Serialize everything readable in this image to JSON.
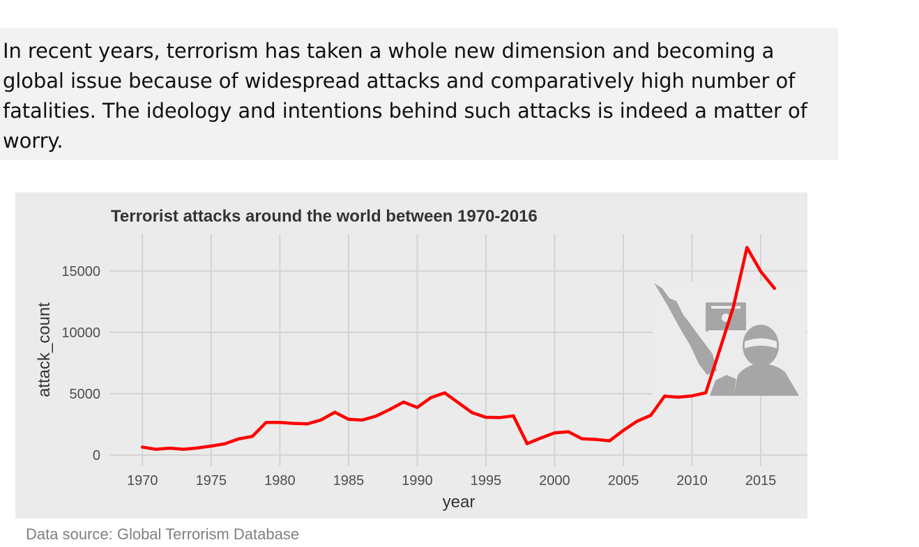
{
  "intro": {
    "text": "In recent years, terrorism has taken a whole new dimension and becoming a global issue because of widespread attacks and comparatively high number of fatalities. The ideology and intentions behind such attacks is indeed a matter of worry."
  },
  "source_note": "Data source: Global Terrorism Database",
  "colors": {
    "panel_background": "#ebebeb",
    "grid": "#d3d3d3",
    "line": "#ff0000",
    "silhouette": "#a6a6a6",
    "intro_background": "#f2f2f2"
  },
  "illustration": {
    "name": "armed-militant-with-flag-silhouette"
  },
  "chart_data": {
    "type": "line",
    "title": "Terrorist attacks around the world between 1970-2016",
    "xlabel": "year",
    "ylabel": "attack_count",
    "xlim": [
      1967.6,
      2018.4
    ],
    "ylim": [
      -900,
      18000
    ],
    "x_ticks": [
      1970,
      1975,
      1980,
      1985,
      1990,
      1995,
      2000,
      2005,
      2010,
      2015
    ],
    "y_ticks": [
      0,
      5000,
      10000,
      15000
    ],
    "grid": true,
    "legend": "none",
    "series": [
      {
        "x": [
          1970,
          1971,
          1972,
          1973,
          1974,
          1975,
          1976,
          1977,
          1978,
          1979,
          1980,
          1981,
          1982,
          1983,
          1984,
          1985,
          1986,
          1987,
          1988,
          1989,
          1990,
          1991,
          1992,
          1994,
          1995,
          1996,
          1997,
          1998,
          1999,
          2000,
          2001,
          2002,
          2003,
          2004,
          2005,
          2006,
          2007,
          2008,
          2009,
          2010,
          2011,
          2012,
          2013,
          2014,
          2015,
          2016
        ],
        "values": [
          651,
          471,
          568,
          473,
          581,
          740,
          923,
          1319,
          1526,
          2661,
          2662,
          2586,
          2544,
          2870,
          3495,
          2915,
          2860,
          3183,
          3721,
          4324,
          3887,
          4683,
          5071,
          3456,
          3081,
          3058,
          3197,
          934,
          1395,
          1814,
          1906,
          1333,
          1278,
          1166,
          2017,
          2758,
          3242,
          4805,
          4721,
          4826,
          5076,
          8522,
          12036,
          16903,
          14965,
          13587
        ]
      }
    ]
  }
}
